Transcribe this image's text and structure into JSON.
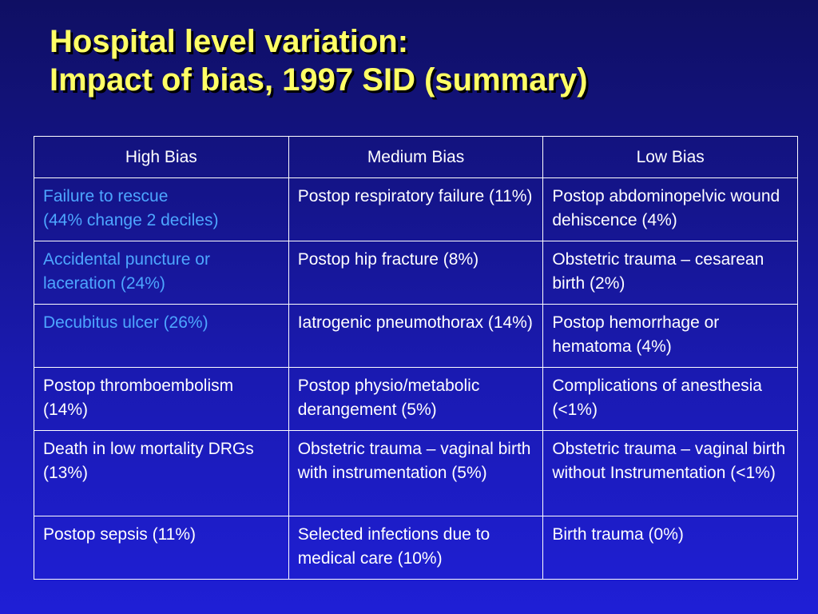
{
  "title": {
    "line1": "Hospital level variation:",
    "line2": "Impact of bias, 1997 SID (summary)"
  },
  "table": {
    "headers": [
      "High Bias",
      "Medium Bias",
      "Low Bias"
    ],
    "rows": [
      [
        "Failure to rescue\n(44% change 2 deciles)",
        "Postop respiratory failure (11%)",
        "Postop abdominopelvic wound dehiscence (4%)"
      ],
      [
        "Accidental puncture or laceration (24%)",
        "Postop hip fracture (8%)",
        "Obstetric trauma – cesarean birth (2%)"
      ],
      [
        "Decubitus ulcer (26%)",
        "Iatrogenic pneumothorax (14%)",
        "Postop hemorrhage or hematoma (4%)"
      ],
      [
        "Postop thromboembolism (14%)",
        "Postop physio/metabolic derangement (5%)",
        "Complications of anesthesia (<1%)"
      ],
      [
        "Death in low mortality DRGs (13%)",
        "Obstetric trauma – vaginal birth with instrumentation (5%)",
        "Obstetric trauma – vaginal birth without Instrumentation (<1%)"
      ],
      [
        "Postop sepsis (11%)",
        "Selected infections due to medical care (10%)",
        "Birth trauma (0%)"
      ]
    ]
  },
  "colors": {
    "title": "#ffff66",
    "highlight_text": "#4da6ff",
    "body_text": "#ffffff",
    "background": "#1a1ab0"
  }
}
